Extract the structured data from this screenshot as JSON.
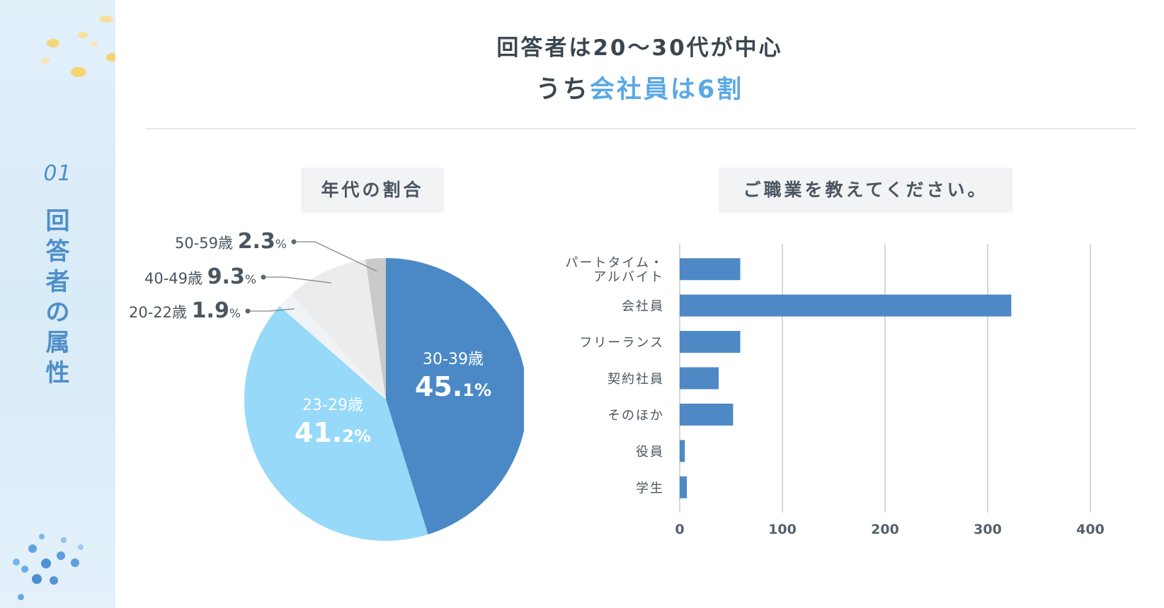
{
  "sidebar": {
    "section_number": "01",
    "section_title_chars": [
      "回",
      "答",
      "者",
      "の",
      "属",
      "性"
    ]
  },
  "heading": {
    "line1": "回答者は20～30代が中心",
    "line2_prefix": "うち",
    "line2_accent": "会社員は6割"
  },
  "colors": {
    "accent": "#5aa8e6",
    "bar": "#4e89c6",
    "pie_main": "#4a89c5",
    "pie_light": "#96d9f9"
  },
  "chart_data": [
    {
      "type": "pie",
      "title": "年代の割合",
      "slices": [
        {
          "label": "30-39歳",
          "value_int": "45",
          "value_dec": "1",
          "value": 45.1,
          "color": "#4a89c5",
          "label_inside": true
        },
        {
          "label": "23-29歳",
          "value_int": "41",
          "value_dec": "2",
          "value": 41.2,
          "color": "#96d9f9",
          "label_inside": true
        },
        {
          "label": "20-22歳",
          "value_int": "1",
          "value_dec": "9",
          "value": 1.9,
          "color": "#f0f3f5",
          "label_inside": false
        },
        {
          "label": "40-49歳",
          "value_int": "9",
          "value_dec": "3",
          "value": 9.3,
          "color": "#ececec",
          "label_inside": false
        },
        {
          "label": "50-59歳",
          "value_int": "2",
          "value_dec": "3",
          "value": 2.3,
          "color": "#cacaca",
          "label_inside": false
        }
      ],
      "percent_sign": "%"
    },
    {
      "type": "bar",
      "orientation": "horizontal",
      "title": "ご職業を教えてください。",
      "categories": [
        [
          "パートタイム・",
          "アルバイト"
        ],
        [
          "会社員"
        ],
        [
          "フリーランス"
        ],
        [
          "契約社員"
        ],
        [
          "そのほか"
        ],
        [
          "役員"
        ],
        [
          "学生"
        ]
      ],
      "values": [
        59,
        323,
        59,
        38,
        52,
        5,
        7
      ],
      "xlim": [
        0,
        400
      ],
      "xticks": [
        "0",
        "100",
        "200",
        "300",
        "400"
      ],
      "grid": true
    }
  ]
}
